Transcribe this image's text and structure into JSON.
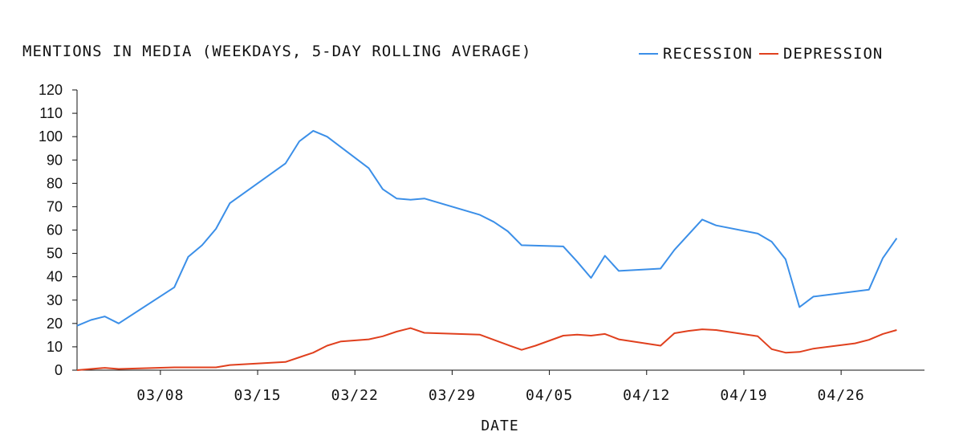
{
  "chart_data": {
    "type": "line",
    "title": "MENTIONS IN MEDIA (WEEKDAYS, 5-DAY ROLLING AVERAGE)",
    "xlabel": "DATE",
    "ylabel": "",
    "ylim": [
      0,
      120
    ],
    "yticks": [
      0,
      10,
      20,
      30,
      40,
      50,
      60,
      70,
      80,
      90,
      100,
      110,
      120
    ],
    "xlim": [
      "03/02",
      "05/02"
    ],
    "xticks": [
      "03/08",
      "03/15",
      "03/22",
      "03/29",
      "04/05",
      "04/12",
      "04/19",
      "04/26"
    ],
    "grid": false,
    "legend": "top-right",
    "series": [
      {
        "name": "RECESSION",
        "color": "#3b8fe8",
        "points": [
          [
            "03/02",
            19
          ],
          [
            "03/03",
            21.5
          ],
          [
            "03/04",
            23
          ],
          [
            "03/05",
            20
          ],
          [
            "03/09",
            35.5
          ],
          [
            "03/10",
            48.5
          ],
          [
            "03/11",
            53.5
          ],
          [
            "03/12",
            60.5
          ],
          [
            "03/13",
            71.5
          ],
          [
            "03/17",
            88.5
          ],
          [
            "03/18",
            98
          ],
          [
            "03/19",
            102.5
          ],
          [
            "03/20",
            100
          ],
          [
            "03/23",
            86.5
          ],
          [
            "03/24",
            77.5
          ],
          [
            "03/25",
            73.5
          ],
          [
            "03/26",
            73
          ],
          [
            "03/27",
            73.5
          ],
          [
            "03/31",
            66.5
          ],
          [
            "04/01",
            63.5
          ],
          [
            "04/02",
            59.5
          ],
          [
            "04/03",
            53.5
          ],
          [
            "04/06",
            53
          ],
          [
            "04/07",
            46.5
          ],
          [
            "04/08",
            39.5
          ],
          [
            "04/09",
            49
          ],
          [
            "04/10",
            42.5
          ],
          [
            "04/13",
            43.5
          ],
          [
            "04/14",
            51.5
          ],
          [
            "04/15",
            58
          ],
          [
            "04/16",
            64.5
          ],
          [
            "04/17",
            62
          ],
          [
            "04/20",
            58.5
          ],
          [
            "04/21",
            55
          ],
          [
            "04/22",
            47.5
          ],
          [
            "04/23",
            27
          ],
          [
            "04/24",
            31.5
          ],
          [
            "04/28",
            34.5
          ],
          [
            "04/29",
            48
          ],
          [
            "04/30",
            56.5
          ]
        ]
      },
      {
        "name": "DEPRESSION",
        "color": "#e0401e",
        "points": [
          [
            "03/02",
            0
          ],
          [
            "03/03",
            0.5
          ],
          [
            "03/04",
            1
          ],
          [
            "03/05",
            0.5
          ],
          [
            "03/09",
            1.2
          ],
          [
            "03/10",
            1.2
          ],
          [
            "03/11",
            1.2
          ],
          [
            "03/12",
            1.2
          ],
          [
            "03/13",
            2.2
          ],
          [
            "03/17",
            3.5
          ],
          [
            "03/18",
            5.5
          ],
          [
            "03/19",
            7.5
          ],
          [
            "03/20",
            10.5
          ],
          [
            "03/21",
            12.3
          ],
          [
            "03/23",
            13.2
          ],
          [
            "03/24",
            14.5
          ],
          [
            "03/25",
            16.5
          ],
          [
            "03/26",
            18
          ],
          [
            "03/27",
            16
          ],
          [
            "03/31",
            15.2
          ],
          [
            "04/01",
            13
          ],
          [
            "04/02",
            10.8
          ],
          [
            "04/03",
            8.7
          ],
          [
            "04/04",
            10.5
          ],
          [
            "04/06",
            14.8
          ],
          [
            "04/07",
            15.2
          ],
          [
            "04/08",
            14.8
          ],
          [
            "04/09",
            15.5
          ],
          [
            "04/10",
            13.2
          ],
          [
            "04/13",
            10.5
          ],
          [
            "04/14",
            15.8
          ],
          [
            "04/15",
            16.8
          ],
          [
            "04/16",
            17.5
          ],
          [
            "04/17",
            17.2
          ],
          [
            "04/20",
            14.5
          ],
          [
            "04/21",
            9
          ],
          [
            "04/22",
            7.5
          ],
          [
            "04/23",
            7.8
          ],
          [
            "04/24",
            9.2
          ],
          [
            "04/27",
            11.5
          ],
          [
            "04/28",
            13
          ],
          [
            "04/29",
            15.5
          ],
          [
            "04/30",
            17.2
          ]
        ]
      }
    ]
  }
}
